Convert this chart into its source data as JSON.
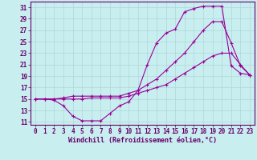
{
  "background_color": "#c8eef0",
  "grid_color": "#b0d8d8",
  "line_color": "#990099",
  "spine_color": "#660066",
  "xlabel": "Windchill (Refroidissement éolien,°C)",
  "xlim": [
    -0.5,
    23.5
  ],
  "ylim": [
    10.5,
    32
  ],
  "yticks": [
    11,
    13,
    15,
    17,
    19,
    21,
    23,
    25,
    27,
    29,
    31
  ],
  "xticks": [
    0,
    1,
    2,
    3,
    4,
    5,
    6,
    7,
    8,
    9,
    10,
    11,
    12,
    13,
    14,
    15,
    16,
    17,
    18,
    19,
    20,
    21,
    22,
    23
  ],
  "line1_x": [
    0,
    1,
    2,
    3,
    4,
    5,
    6,
    7,
    8,
    9,
    10,
    11,
    12,
    13,
    14,
    15,
    16,
    17,
    18,
    19,
    20,
    21,
    22,
    23
  ],
  "line1_y": [
    15,
    15,
    14.8,
    13.8,
    12.0,
    11.2,
    11.2,
    11.2,
    12.5,
    13.8,
    14.5,
    16.5,
    21.0,
    24.8,
    26.5,
    27.2,
    30.2,
    30.8,
    31.2,
    31.2,
    31.2,
    20.8,
    19.5,
    19.2
  ],
  "line2_x": [
    0,
    1,
    2,
    3,
    4,
    5,
    6,
    7,
    8,
    9,
    10,
    11,
    12,
    13,
    14,
    15,
    16,
    17,
    18,
    19,
    20,
    21,
    22,
    23
  ],
  "line2_y": [
    15,
    15,
    15,
    15.2,
    15.5,
    15.5,
    15.5,
    15.5,
    15.5,
    15.5,
    16.0,
    16.5,
    17.5,
    18.5,
    20.0,
    21.5,
    23.0,
    25.0,
    27.0,
    28.5,
    28.5,
    24.8,
    20.8,
    19.2
  ],
  "line3_x": [
    0,
    1,
    2,
    3,
    4,
    5,
    6,
    7,
    8,
    9,
    10,
    11,
    12,
    13,
    14,
    15,
    16,
    17,
    18,
    19,
    20,
    21,
    22,
    23
  ],
  "line3_y": [
    15,
    15,
    15,
    15,
    15,
    15,
    15.2,
    15.2,
    15.2,
    15.2,
    15.5,
    16.0,
    16.5,
    17.0,
    17.5,
    18.5,
    19.5,
    20.5,
    21.5,
    22.5,
    23.0,
    23.0,
    21.0,
    19.2
  ],
  "tick_fontsize": 5.5,
  "xlabel_fontsize": 6.0,
  "linewidth": 0.8,
  "markersize": 2.5
}
